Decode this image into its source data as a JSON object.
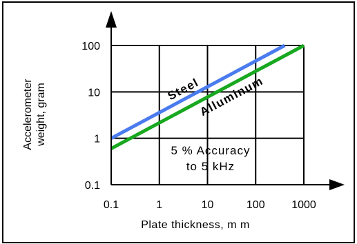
{
  "chart_data": {
    "type": "line",
    "xscale": "log",
    "yscale": "log",
    "xlim": [
      0.1,
      1000
    ],
    "ylim": [
      0.1,
      100
    ],
    "grid": true,
    "xlabel": "Plate thickness, m m",
    "ylabel_line1": "Accelerometer",
    "ylabel_line2": "weight, gram",
    "x_ticks": [
      {
        "value": 0.1,
        "label": "0.1"
      },
      {
        "value": 1,
        "label": "1"
      },
      {
        "value": 10,
        "label": "10"
      },
      {
        "value": 100,
        "label": "100"
      },
      {
        "value": 1000,
        "label": "1000"
      }
    ],
    "y_ticks": [
      {
        "value": 0.1,
        "label": "0.1"
      },
      {
        "value": 1,
        "label": "1"
      },
      {
        "value": 10,
        "label": "10"
      },
      {
        "value": 100,
        "label": "100"
      }
    ],
    "series": [
      {
        "name": "Steel",
        "color": "#4a7bef",
        "x": [
          0.1,
          400
        ],
        "y": [
          1,
          100
        ]
      },
      {
        "name": "Alluminum",
        "color": "#18a81f",
        "x": [
          0.1,
          1000
        ],
        "y": [
          0.6,
          100
        ]
      }
    ],
    "annotation_line1": "5 % Accuracy",
    "annotation_line2": "to 5 kHz"
  }
}
